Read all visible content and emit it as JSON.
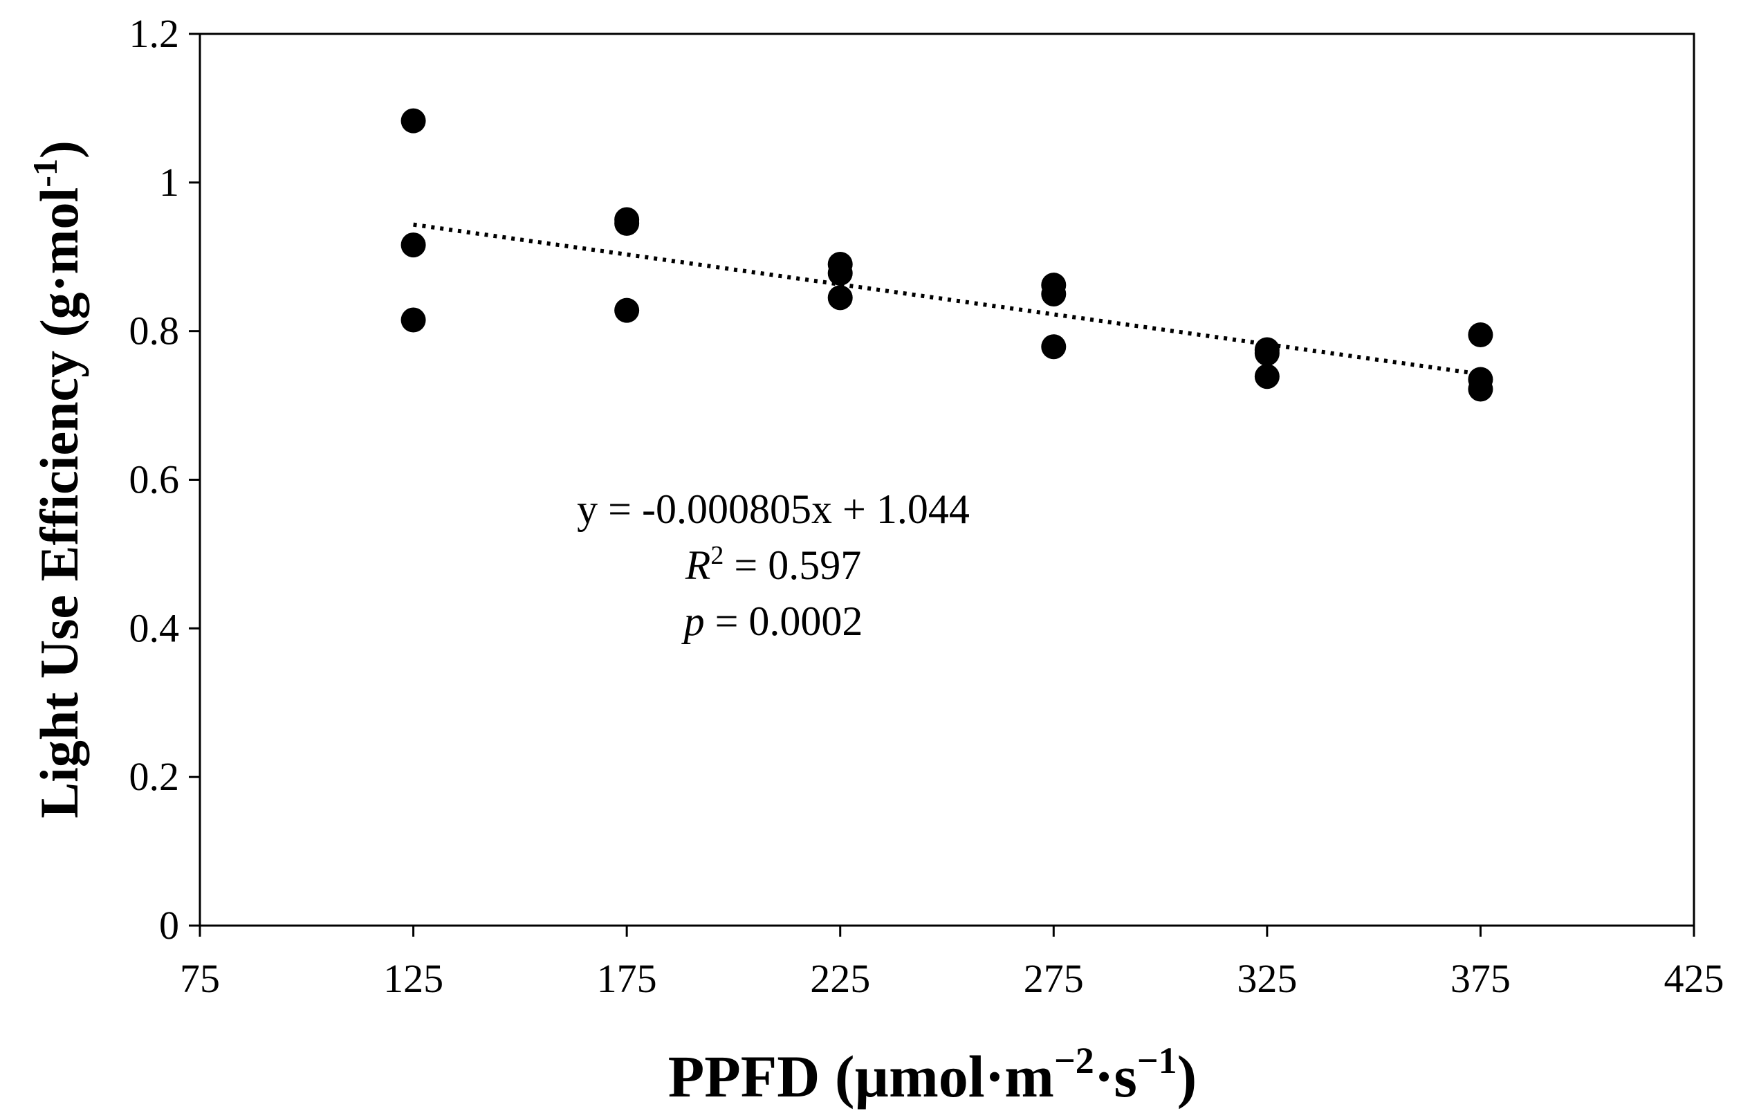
{
  "chart_data": {
    "type": "scatter",
    "title": "",
    "xlabel": "PPFD (µmol·m⁻²·s⁻¹)",
    "xlabel_parts": {
      "main": "PPFD (µmol·m",
      "sup1": "−2",
      "mid": "·s",
      "sup2": "−1",
      "end": ")"
    },
    "ylabel": "Light Use Efficiency (g·mol-1)",
    "ylabel_parts": {
      "main": "Light Use Efficiency (g·mol",
      "sup": "-1",
      "end": ")"
    },
    "xlim": [
      75,
      425
    ],
    "ylim": [
      0,
      1.2
    ],
    "x_ticks": [
      75,
      125,
      175,
      225,
      275,
      325,
      375,
      425
    ],
    "y_ticks": [
      0,
      0.2,
      0.4,
      0.6,
      0.8,
      1,
      1.2
    ],
    "y_tick_labels": [
      "0",
      "0.2",
      "0.4",
      "0.6",
      "0.8",
      "1",
      "1.2"
    ],
    "grid": false,
    "series": [
      {
        "name": "Light Use Efficiency",
        "marker": "circle",
        "color": "#000000",
        "points": [
          {
            "x": 125,
            "y": 1.083
          },
          {
            "x": 125,
            "y": 0.916
          },
          {
            "x": 125,
            "y": 0.815
          },
          {
            "x": 175,
            "y": 0.95
          },
          {
            "x": 175,
            "y": 0.945
          },
          {
            "x": 175,
            "y": 0.828
          },
          {
            "x": 225,
            "y": 0.89
          },
          {
            "x": 225,
            "y": 0.878
          },
          {
            "x": 225,
            "y": 0.845
          },
          {
            "x": 275,
            "y": 0.862
          },
          {
            "x": 275,
            "y": 0.85
          },
          {
            "x": 275,
            "y": 0.779
          },
          {
            "x": 325,
            "y": 0.775
          },
          {
            "x": 325,
            "y": 0.77
          },
          {
            "x": 325,
            "y": 0.739
          },
          {
            "x": 375,
            "y": 0.795
          },
          {
            "x": 375,
            "y": 0.735
          },
          {
            "x": 375,
            "y": 0.722
          }
        ]
      }
    ],
    "trendline": {
      "style": "dotted",
      "slope": -0.000805,
      "intercept": 1.044,
      "x_range": [
        125,
        375
      ]
    },
    "annotations": {
      "equation": "y = -0.000805x + 1.044",
      "r2_label": "R",
      "r2_sup": "2",
      "r2_value": " = 0.597",
      "p_label": "p",
      "p_value": " = 0.0002"
    }
  }
}
